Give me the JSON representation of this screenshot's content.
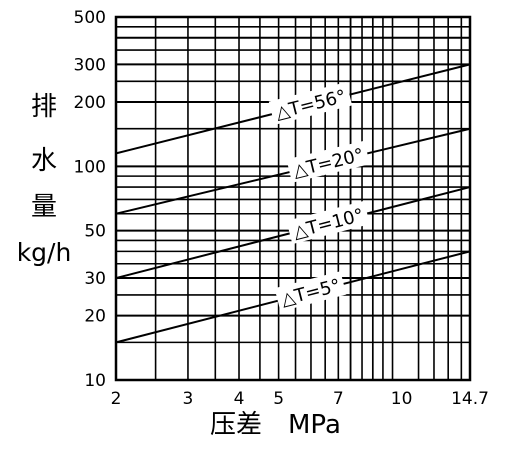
{
  "chart_data": {
    "type": "line",
    "xscale": "log",
    "yscale": "log",
    "xlim": [
      2,
      14.7
    ],
    "ylim": [
      10,
      500
    ],
    "xticks": [
      2,
      3,
      4,
      5,
      7,
      10,
      14.7
    ],
    "xtick_labels": [
      "2",
      "3",
      "4",
      "5",
      "7",
      "10",
      "14.7"
    ],
    "yticks": [
      10,
      20,
      30,
      50,
      100,
      200,
      300,
      500
    ],
    "ytick_labels": [
      "10",
      "20",
      "30",
      "50",
      "100",
      "200",
      "300",
      "500"
    ],
    "xlabel": "压差　MPa",
    "ylabel_chars": [
      "排",
      "水",
      "量"
    ],
    "ylabel_unit": "kg/h",
    "grid": true,
    "series": [
      {
        "name": "△T=56°",
        "x": [
          2,
          14.7
        ],
        "y": [
          115,
          300
        ]
      },
      {
        "name": "△T=20°",
        "x": [
          2,
          14.7
        ],
        "y": [
          60,
          150
        ]
      },
      {
        "name": "△T=10°",
        "x": [
          2,
          14.7
        ],
        "y": [
          30,
          80
        ]
      },
      {
        "name": "△T=5°",
        "x": [
          2,
          14.7
        ],
        "y": [
          15,
          40
        ]
      }
    ]
  }
}
